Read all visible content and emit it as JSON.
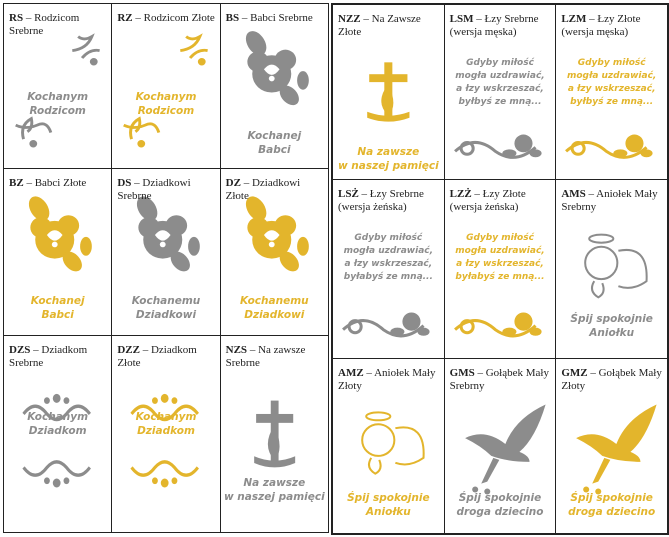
{
  "panels": [
    {
      "cells": [
        {
          "code": "RS",
          "name": "– Rodzicom Srebrne",
          "inscription": [
            "Kochanym",
            "Rodzicom"
          ],
          "color": "#8c8c8c"
        },
        {
          "code": "RZ",
          "name": "– Rodzicom Złote",
          "inscription": [
            "Kochanym",
            "Rodzicom"
          ],
          "color": "#e3b52c"
        },
        {
          "code": "BS",
          "name": "– Babci Srebrne",
          "inscription": [
            "Kochanej",
            "Babci"
          ],
          "color": "#8c8c8c"
        },
        {
          "code": "BZ",
          "name": "– Babci Złote",
          "inscription": [
            "Kochanej",
            "Babci"
          ],
          "color": "#e3b52c"
        },
        {
          "code": "DS",
          "name": "– Dziadkowi Srebrne",
          "inscription": [
            "Kochanemu",
            "Dziadkowi"
          ],
          "color": "#8c8c8c"
        },
        {
          "code": "DZ",
          "name": "– Dziadkowi Złote",
          "inscription": [
            "Kochanemu",
            "Dziadkowi"
          ],
          "color": "#e3b52c"
        },
        {
          "code": "DZS",
          "name": "– Dziadkom Srebrne",
          "inscription": [
            "Kochanym",
            "Dziadkom"
          ],
          "color": "#8c8c8c"
        },
        {
          "code": "DZZ",
          "name": "– Dziadkom Złote",
          "inscription": [
            "Kochanym",
            "Dziadkom"
          ],
          "color": "#e3b52c"
        },
        {
          "code": "NZS",
          "name": "– Na zawsze Srebrne",
          "inscription": [
            "Na zawsze",
            "w naszej pamięci"
          ],
          "color": "#8c8c8c"
        }
      ]
    },
    {
      "cells": [
        {
          "code": "NZZ",
          "name": "– Na Zawsze Złote",
          "inscription": [
            "Na zawsze",
            "w naszej pamięci"
          ],
          "color": "#e3b52c"
        },
        {
          "code": "LSM",
          "name": "– Łzy Srebrne (wersja męska)",
          "inscription": [
            "Gdyby miłość",
            "mogła uzdrawiać,",
            "a łzy wskrzeszać,",
            "byłbyś ze mną..."
          ],
          "color": "#8c8c8c"
        },
        {
          "code": "LZM",
          "name": "– Łzy Złote (wersja męska)",
          "inscription": [
            "Gdyby miłość",
            "mogła uzdrawiać,",
            "a łzy wskrzeszać,",
            "byłbyś ze mną..."
          ],
          "color": "#e3b52c"
        },
        {
          "code": "LSŻ",
          "name": "– Łzy Srebrne (wersja żeńska)",
          "inscription": [
            "Gdyby miłość",
            "mogła uzdrawiać,",
            "a łzy wskrzeszać,",
            "byłabyś ze mną..."
          ],
          "color": "#8c8c8c"
        },
        {
          "code": "LZŻ",
          "name": "– Łzy Złote (wersja żeńska)",
          "inscription": [
            "Gdyby miłość",
            "mogła uzdrawiać,",
            "a łzy wskrzeszać,",
            "byłabyś ze mną..."
          ],
          "color": "#e3b52c"
        },
        {
          "code": "AMS",
          "name": "– Aniołek Mały Srebrny",
          "inscription": [
            "Śpij spokojnie",
            "Aniołku"
          ],
          "color": "#8c8c8c"
        },
        {
          "code": "AMZ",
          "name": "– Aniołek Mały Złoty",
          "inscription": [
            "Śpij spokojnie",
            "Aniołku"
          ],
          "color": "#e3b52c"
        },
        {
          "code": "GMS",
          "name": "– Gołąbek Mały Srebrny",
          "inscription": [
            "Śpij spokojnie",
            "droga dziecino"
          ],
          "color": "#8c8c8c"
        },
        {
          "code": "GMZ",
          "name": "– Gołąbek Mały Złoty",
          "inscription": [
            "Śpij spokojnie",
            "droga dziecino"
          ],
          "color": "#e3b52c"
        }
      ]
    }
  ]
}
